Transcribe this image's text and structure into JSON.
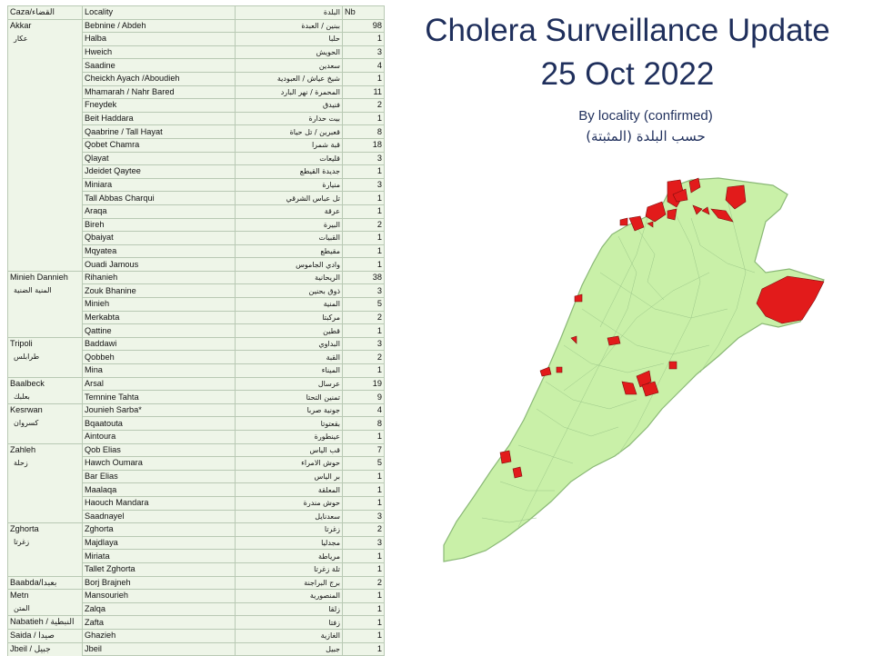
{
  "title": {
    "line1": "Cholera Surveillance Update",
    "line2": "25 Oct 2022",
    "subtitle": "By locality (confirmed)",
    "subtitle_ar": "حسب البلدة (المثبتة)"
  },
  "table": {
    "header": {
      "caza": "Caza/القضاء",
      "locality": "Locality",
      "locality_ar": "البلدة",
      "nb": "Nb"
    },
    "rows": [
      {
        "caza_en": "Akkar",
        "caza_ar": "عكار",
        "locality": "Bebnine / Abdeh",
        "locality_ar": "ببنين / العبدة",
        "nb": "98"
      },
      {
        "locality": "Halba",
        "locality_ar": "حلبا",
        "nb": "1"
      },
      {
        "locality": "Hweich",
        "locality_ar": "الحويش",
        "nb": "3"
      },
      {
        "locality": "Saadine",
        "locality_ar": "سعدين",
        "nb": "4"
      },
      {
        "locality": "Cheickh Ayach /Aboudieh",
        "locality_ar": "شيخ عياش / العبودية",
        "nb": "1"
      },
      {
        "locality": "Mhamarah / Nahr Bared",
        "locality_ar": "المحمرة / نهر البارد",
        "nb": "11"
      },
      {
        "locality": "Fneydek",
        "locality_ar": "فنيدق",
        "nb": "2"
      },
      {
        "locality": "Beit Haddara",
        "locality_ar": "بيت حدارة",
        "nb": "1"
      },
      {
        "locality": "Qaabrine / Tall Hayat",
        "locality_ar": "قعبرين / تل حياة",
        "nb": "8"
      },
      {
        "locality": "Qobet Chamra",
        "locality_ar": "قبة شمرا",
        "nb": "18"
      },
      {
        "locality": "Qlayat",
        "locality_ar": "قليعات",
        "nb": "3"
      },
      {
        "locality": "Jdeidet Qaytee",
        "locality_ar": "جديدة القيطع",
        "nb": "1"
      },
      {
        "locality": "Miniara",
        "locality_ar": "منيارة",
        "nb": "3"
      },
      {
        "locality": "Tall Abbas Charqui",
        "locality_ar": "تل عباس الشرقي",
        "nb": "1"
      },
      {
        "locality": "Araqa",
        "locality_ar": "عرقة",
        "nb": "1"
      },
      {
        "locality": "Bireh",
        "locality_ar": "البيرة",
        "nb": "2"
      },
      {
        "locality": "Qbaiyat",
        "locality_ar": "القبيات",
        "nb": "1"
      },
      {
        "locality": "Mqyatea",
        "locality_ar": "مقيطع",
        "nb": "1"
      },
      {
        "locality": "Ouadi Jamous",
        "locality_ar": "وادي الجاموس",
        "nb": "1"
      },
      {
        "caza_en": "Minieh Dannieh",
        "caza_ar": "المنية الضنية",
        "locality": "Rihanieh",
        "locality_ar": "الريحانية",
        "nb": "38"
      },
      {
        "locality": "Zouk Bhanine",
        "locality_ar": "ذوق بحنين",
        "nb": "3"
      },
      {
        "locality": "Minieh",
        "locality_ar": "المنية",
        "nb": "5"
      },
      {
        "locality": "Merkabta",
        "locality_ar": "مركبتا",
        "nb": "2"
      },
      {
        "locality": "Qattine",
        "locality_ar": "قطين",
        "nb": "1"
      },
      {
        "caza_en": "Tripoli",
        "caza_ar": "طرابلس",
        "locality": "Baddawi",
        "locality_ar": "البداوي",
        "nb": "3"
      },
      {
        "locality": "Qobbeh",
        "locality_ar": "القبة",
        "nb": "2"
      },
      {
        "locality": "Mina",
        "locality_ar": "الميناء",
        "nb": "1"
      },
      {
        "caza_en": "Baalbeck",
        "caza_ar": "بعلبك",
        "locality": "Arsal",
        "locality_ar": "عرسال",
        "nb": "19"
      },
      {
        "locality": "Temnine Tahta",
        "locality_ar": "تمنين التحتا",
        "nb": "9"
      },
      {
        "caza_en": "Kesrwan",
        "caza_ar": "كسروان",
        "locality": "Jounieh Sarba*",
        "locality_ar": "جونية صربا",
        "nb": "4"
      },
      {
        "locality": "Bqaatouta",
        "locality_ar": "بقعتوتا",
        "nb": "8"
      },
      {
        "locality": "Aintoura",
        "locality_ar": "عينطورة",
        "nb": "1"
      },
      {
        "caza_en": "Zahleh",
        "caza_ar": "زحلة",
        "locality": "Qob Elias",
        "locality_ar": "قب الياس",
        "nb": "7"
      },
      {
        "locality": "Hawch Oumara",
        "locality_ar": "حوش الامراء",
        "nb": "5"
      },
      {
        "locality": "Bar Elias",
        "locality_ar": "بر الياس",
        "nb": "1"
      },
      {
        "locality": "Maalaqa",
        "locality_ar": "المعلقة",
        "nb": "1"
      },
      {
        "locality": "Haouch Mandara",
        "locality_ar": "حوش مندرة",
        "nb": "1"
      },
      {
        "locality": "Saadnayel",
        "locality_ar": "سعدنايل",
        "nb": "3"
      },
      {
        "caza_en": "Zghorta",
        "caza_ar": "زغرتا",
        "locality": "Zghorta",
        "locality_ar": "زغرتا",
        "nb": "2"
      },
      {
        "locality": "Majdlaya",
        "locality_ar": "مجدليا",
        "nb": "3"
      },
      {
        "locality": "Miriata",
        "locality_ar": "مرياطة",
        "nb": "1"
      },
      {
        "locality": "Tallet Zghorta",
        "locality_ar": "تلة زغرتا",
        "nb": "1"
      },
      {
        "caza_en": "Baabda/بعبدا",
        "locality": "Borj Brajneh",
        "locality_ar": "برج البراجنة",
        "nb": "2"
      },
      {
        "caza_en": "Metn",
        "caza_ar": "المتن",
        "locality": "Mansourieh",
        "locality_ar": "المنصورية",
        "nb": "1"
      },
      {
        "locality": "Zalqa",
        "locality_ar": "زلقا",
        "nb": "1"
      },
      {
        "caza_en": "Nabatieh / النبطية",
        "locality": "Zafta",
        "locality_ar": "زفتا",
        "nb": "1"
      },
      {
        "caza_en": "Saida / صيدا",
        "locality": "Ghazieh",
        "locality_ar": "الغازية",
        "nb": "1"
      },
      {
        "caza_en": "Jbeil / جبيل",
        "locality": "Jbeil",
        "locality_ar": "جبيل",
        "nb": "1"
      }
    ]
  },
  "map": {
    "land_color": "#c9f0a8",
    "border_color": "#8ab876",
    "case_color": "#e21b1b"
  }
}
